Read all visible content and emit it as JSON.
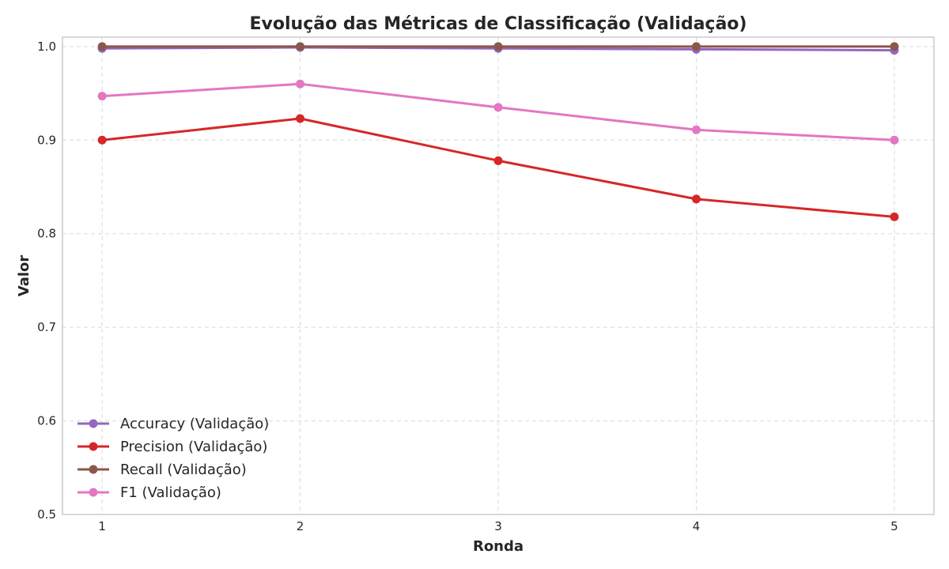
{
  "chart_data": {
    "type": "line",
    "title": "Evolução das Métricas de Classificação (Validação)",
    "xlabel": "Ronda",
    "ylabel": "Valor",
    "x": [
      1,
      2,
      3,
      4,
      5
    ],
    "xticks": [
      "1",
      "2",
      "3",
      "4",
      "5"
    ],
    "ylim": [
      0.5,
      1.01
    ],
    "yticks": [
      0.5,
      0.6,
      0.7,
      0.8,
      0.9,
      1.0
    ],
    "ytick_labels": [
      "0.5",
      "0.6",
      "0.7",
      "0.8",
      "0.9",
      "1.0"
    ],
    "grid": true,
    "legend_position": "lower-left",
    "series": [
      {
        "name": "Accuracy (Validação)",
        "color": "#9467bd",
        "values": [
          0.998,
          0.999,
          0.998,
          0.997,
          0.996
        ]
      },
      {
        "name": "Precision (Validação)",
        "color": "#d62728",
        "values": [
          0.9,
          0.923,
          0.878,
          0.837,
          0.818
        ]
      },
      {
        "name": "Recall (Validação)",
        "color": "#8c564b",
        "values": [
          1.0,
          1.0,
          1.0,
          1.0,
          1.0
        ]
      },
      {
        "name": "F1 (Validação)",
        "color": "#e377c2",
        "values": [
          0.947,
          0.96,
          0.935,
          0.911,
          0.9
        ]
      }
    ]
  }
}
